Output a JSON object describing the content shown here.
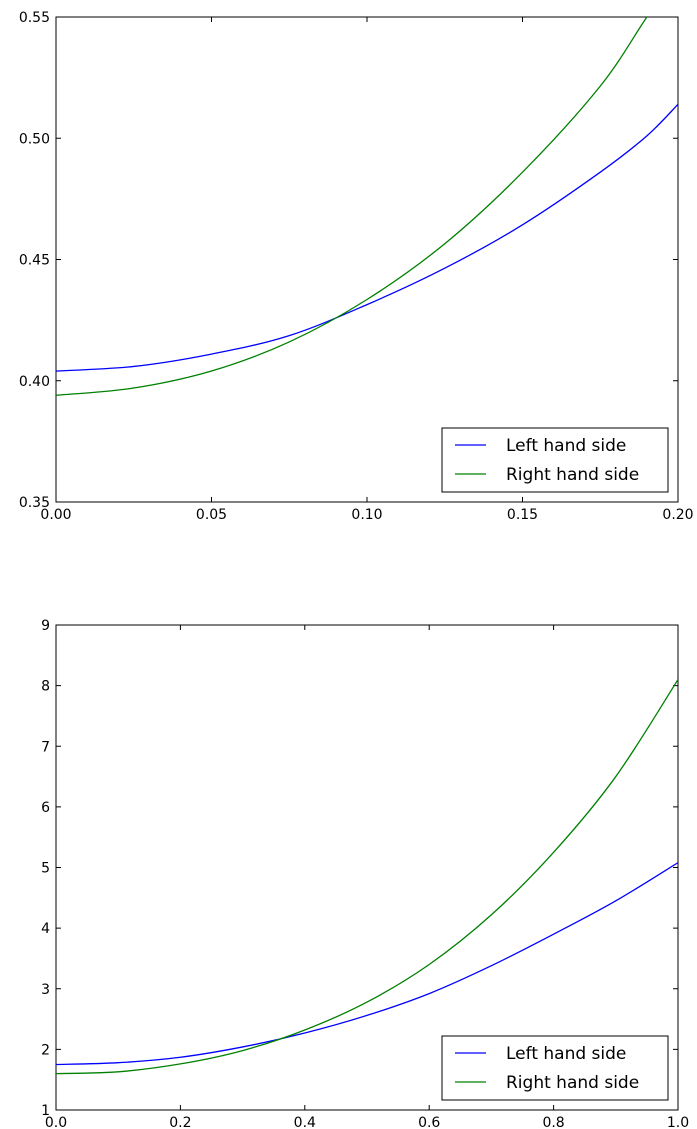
{
  "chart_data": [
    {
      "type": "line",
      "title": "",
      "xlabel": "",
      "ylabel": "",
      "xlim": [
        0.0,
        0.2
      ],
      "ylim": [
        0.35,
        0.55
      ],
      "grid": false,
      "legend_position": "bottom-right",
      "x_ticks": [
        "0.00",
        "0.05",
        "0.10",
        "0.15",
        "0.20"
      ],
      "y_ticks": [
        "0.35",
        "0.40",
        "0.45",
        "0.50",
        "0.55"
      ],
      "x": [
        0.0,
        0.025,
        0.05,
        0.075,
        0.1,
        0.125,
        0.15,
        0.175,
        0.19,
        0.2
      ],
      "series": [
        {
          "name": "Left hand side",
          "color": "#0000ff",
          "values": [
            0.404,
            0.4059,
            0.411,
            0.4186,
            0.4314,
            0.4464,
            0.4643,
            0.486,
            0.501,
            0.514
          ]
        },
        {
          "name": "Right hand side",
          "color": "#008000",
          "values": [
            0.394,
            0.397,
            0.404,
            0.416,
            0.4335,
            0.4565,
            0.486,
            0.5215,
            0.55,
            0.568
          ]
        }
      ]
    },
    {
      "type": "line",
      "title": "",
      "xlabel": "",
      "ylabel": "",
      "xlim": [
        0.0,
        1.0
      ],
      "ylim": [
        1,
        9
      ],
      "grid": false,
      "legend_position": "bottom-right",
      "x_ticks": [
        "0.0",
        "0.2",
        "0.4",
        "0.6",
        "0.8",
        "1.0"
      ],
      "y_ticks": [
        "1",
        "2",
        "3",
        "4",
        "5",
        "6",
        "7",
        "8",
        "9"
      ],
      "x": [
        0.0,
        0.1,
        0.2,
        0.3,
        0.4,
        0.5,
        0.6,
        0.7,
        0.8,
        0.9,
        1.0
      ],
      "series": [
        {
          "name": "Left hand side",
          "color": "#0000ff",
          "values": [
            1.75,
            1.78,
            1.87,
            2.04,
            2.27,
            2.56,
            2.92,
            3.38,
            3.9,
            4.45,
            5.08
          ]
        },
        {
          "name": "Right hand side",
          "color": "#008000",
          "values": [
            1.6,
            1.63,
            1.76,
            1.98,
            2.32,
            2.78,
            3.4,
            4.22,
            5.25,
            6.5,
            8.1
          ]
        }
      ]
    }
  ]
}
